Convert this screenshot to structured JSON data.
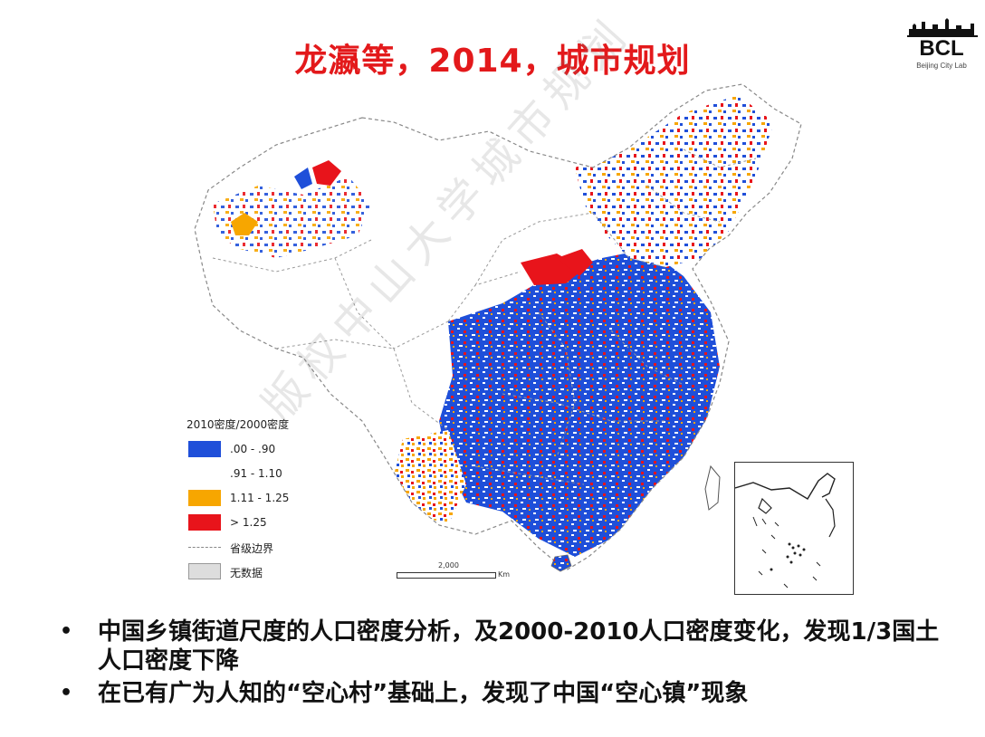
{
  "title": "龙瀛等，2014，城市规划",
  "logo": {
    "name": "BCL",
    "subtitle": "Beijing City Lab"
  },
  "legend": {
    "title": "2010密度/2000密度",
    "items": [
      {
        "label": ".00 - .90",
        "color": "#1f4fd9"
      },
      {
        "label": ".91 - 1.10",
        "color": "#ffffff"
      },
      {
        "label": "1.11 - 1.25",
        "color": "#f7a600"
      },
      {
        "label": "> 1.25",
        "color": "#e8141b"
      }
    ],
    "boundary_label": "省级边界",
    "nodata_label": "无数据",
    "nodata_color": "#dddddd"
  },
  "scale": {
    "value": "2,000",
    "unit": "Km"
  },
  "watermark": "版权中山大学城市规划",
  "bullets": [
    "中国乡镇街道尺度的人口密度分析，及2000-2010人口密度变化，发现1/3国土人口密度下降",
    "在已有广为人知的“空心村”基础上，发现了中国“空心镇”现象"
  ]
}
